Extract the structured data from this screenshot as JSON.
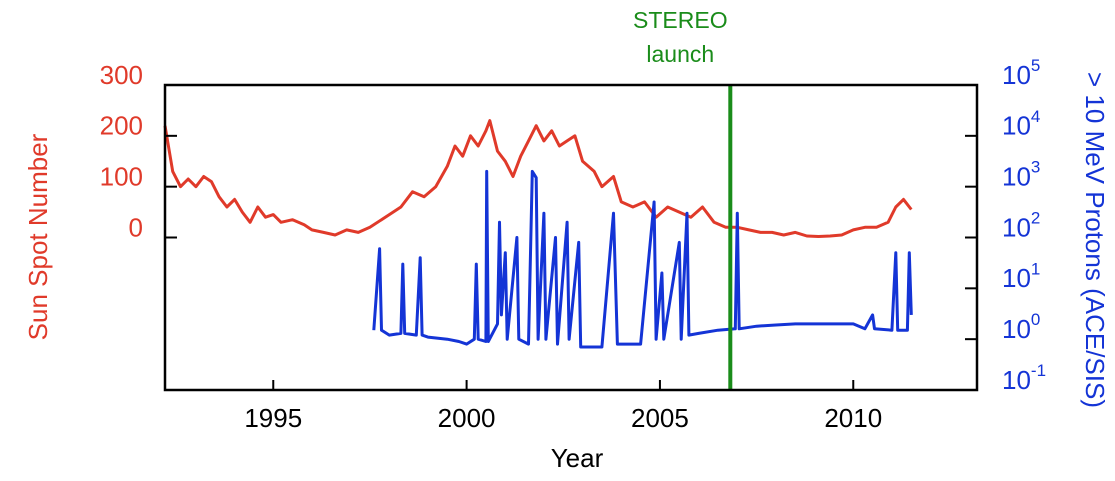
{
  "chart_data": {
    "type": "line",
    "x_label": "Year",
    "y_label": "Sun Spot Number",
    "y2_label": "> 10 MeV Protons (ACE/SIS)",
    "xlim": [
      1992.2,
      2013.2
    ],
    "xticks": [
      1995,
      2000,
      2005,
      2010
    ],
    "ylim": [
      -300,
      300
    ],
    "yticks": [
      0,
      100,
      200,
      300
    ],
    "y2lim": [
      0.1,
      100000
    ],
    "y2log": true,
    "y2ticks": [
      {
        "value": 0.1,
        "label": "10",
        "exponent": "-1"
      },
      {
        "value": 1,
        "label": "10",
        "exponent": "0"
      },
      {
        "value": 10,
        "label": "10",
        "exponent": "1"
      },
      {
        "value": 100,
        "label": "10",
        "exponent": "2"
      },
      {
        "value": 1000,
        "label": "10",
        "exponent": "3"
      },
      {
        "value": 10000,
        "label": "10",
        "exponent": "4"
      },
      {
        "value": 100000,
        "label": "10",
        "exponent": "5"
      }
    ],
    "annotation": {
      "lines": [
        "STEREO",
        "launch"
      ],
      "x": 2006.82,
      "color": "#1a8c1a"
    },
    "series": [
      {
        "name": "Sun Spot Number",
        "color": "#e03a2a",
        "axis": "y",
        "x": [
          1992.2,
          1992.4,
          1992.6,
          1992.8,
          1993.0,
          1993.2,
          1993.4,
          1993.6,
          1993.8,
          1994.0,
          1994.2,
          1994.4,
          1994.6,
          1994.8,
          1995.0,
          1995.2,
          1995.5,
          1995.8,
          1996.0,
          1996.3,
          1996.6,
          1996.9,
          1997.2,
          1997.5,
          1997.8,
          1998.0,
          1998.3,
          1998.6,
          1998.9,
          1999.2,
          1999.5,
          1999.7,
          1999.9,
          2000.1,
          2000.3,
          2000.5,
          2000.6,
          2000.8,
          2001.0,
          2001.2,
          2001.4,
          2001.6,
          2001.8,
          2002.0,
          2002.2,
          2002.4,
          2002.6,
          2002.8,
          2003.0,
          2003.3,
          2003.5,
          2003.8,
          2004.0,
          2004.3,
          2004.6,
          2004.9,
          2005.2,
          2005.5,
          2005.8,
          2006.1,
          2006.4,
          2006.7,
          2007.0,
          2007.3,
          2007.6,
          2007.9,
          2008.2,
          2008.5,
          2008.8,
          2009.1,
          2009.4,
          2009.7,
          2010.0,
          2010.3,
          2010.6,
          2010.9,
          2011.1,
          2011.3,
          2011.5
        ],
        "values": [
          220,
          130,
          100,
          115,
          100,
          120,
          110,
          80,
          60,
          75,
          50,
          30,
          60,
          40,
          45,
          30,
          35,
          25,
          15,
          10,
          5,
          15,
          10,
          20,
          35,
          45,
          60,
          90,
          80,
          100,
          140,
          180,
          160,
          200,
          180,
          210,
          230,
          170,
          150,
          120,
          160,
          190,
          220,
          190,
          210,
          180,
          190,
          200,
          150,
          130,
          100,
          120,
          70,
          60,
          70,
          40,
          60,
          50,
          40,
          60,
          30,
          20,
          20,
          15,
          10,
          10,
          5,
          10,
          3,
          2,
          3,
          5,
          15,
          20,
          20,
          30,
          60,
          75,
          55
        ]
      },
      {
        "name": "> 10 MeV Protons",
        "color": "#1434d6",
        "axis": "y2",
        "x": [
          1997.6,
          1997.75,
          1997.8,
          1998.0,
          1998.3,
          1998.35,
          1998.4,
          1998.7,
          1998.8,
          1998.85,
          1999.0,
          1999.5,
          1999.8,
          2000.0,
          2000.2,
          2000.25,
          2000.3,
          2000.5,
          2000.52,
          2000.56,
          2000.8,
          2000.85,
          2000.9,
          2001.0,
          2001.05,
          2001.3,
          2001.35,
          2001.6,
          2001.7,
          2001.8,
          2001.85,
          2002.0,
          2002.05,
          2002.3,
          2002.35,
          2002.6,
          2002.65,
          2002.9,
          2002.95,
          2003.2,
          2003.5,
          2003.8,
          2003.9,
          2004.2,
          2004.5,
          2004.85,
          2004.9,
          2005.05,
          2005.1,
          2005.5,
          2005.55,
          2005.7,
          2005.75,
          2006.0,
          2006.5,
          2006.95,
          2007.0,
          2007.05,
          2007.5,
          2008.0,
          2008.5,
          2009.0,
          2009.5,
          2010.0,
          2010.3,
          2010.5,
          2010.55,
          2011.0,
          2011.1,
          2011.15,
          2011.4,
          2011.45,
          2011.5
        ],
        "values": [
          1.5,
          60,
          1.5,
          1.2,
          1.3,
          30,
          1.3,
          1.2,
          40,
          1.2,
          1.1,
          1.0,
          0.9,
          0.8,
          1,
          30,
          1,
          0.9,
          2000,
          0.9,
          2,
          200,
          3,
          50,
          1,
          100,
          1,
          0.8,
          2000,
          1500,
          1,
          300,
          1,
          100,
          0.8,
          200,
          1,
          80,
          0.7,
          0.7,
          0.7,
          300,
          0.8,
          0.8,
          0.8,
          500,
          1,
          20,
          1,
          80,
          1,
          300,
          1.2,
          1.3,
          1.5,
          1.6,
          300,
          1.6,
          1.8,
          1.9,
          2,
          2,
          2,
          2,
          1.6,
          3,
          1.6,
          1.5,
          50,
          1.5,
          1.5,
          50,
          3
        ]
      }
    ]
  }
}
